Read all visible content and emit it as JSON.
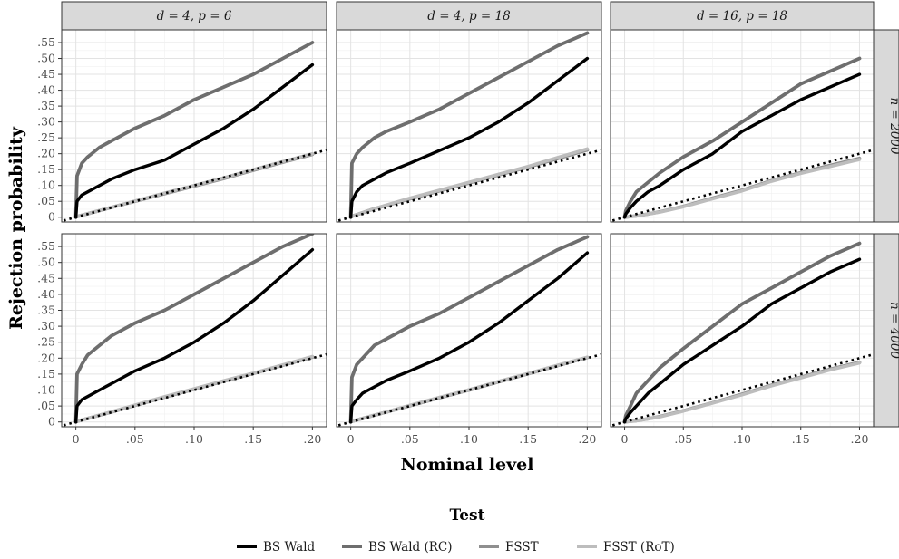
{
  "chart_data": {
    "type": "line",
    "facet_rows": [
      "n = 2000",
      "n = 4000"
    ],
    "facet_cols": [
      "d = 4, p = 6",
      "d = 4, p = 18",
      "d = 16, p = 18"
    ],
    "xlabel": "Nominal level",
    "ylabel": "Rejection probability",
    "xlim": [
      0,
      0.2
    ],
    "ylim": [
      0,
      0.59
    ],
    "x_ticks": [
      0,
      0.05,
      0.1,
      0.15,
      0.2
    ],
    "x_tick_labels": [
      "0",
      ".05",
      ".10",
      ".15",
      ".20"
    ],
    "y_ticks": [
      0,
      0.05,
      0.1,
      0.15,
      0.2,
      0.25,
      0.3,
      0.35,
      0.4,
      0.45,
      0.5,
      0.55
    ],
    "y_tick_labels": [
      "0",
      ".05",
      ".10",
      ".15",
      ".20",
      ".25",
      ".30",
      ".35",
      ".40",
      ".45",
      ".50",
      ".55"
    ],
    "grid": true,
    "reference_line": "45-degree dotted line",
    "legend": {
      "title": "Test",
      "position": "bottom",
      "entries": [
        {
          "name": "BS Wald",
          "color": "#000000"
        },
        {
          "name": "BS Wald (RC)",
          "color": "#6e6e6e"
        },
        {
          "name": "FSST",
          "color": "#8f8f8f"
        },
        {
          "name": "FSST (RoT)",
          "color": "#bdbdbd"
        }
      ]
    },
    "x": [
      0,
      0.001,
      0.005,
      0.01,
      0.02,
      0.03,
      0.05,
      0.075,
      0.1,
      0.125,
      0.15,
      0.175,
      0.2
    ],
    "panels": [
      {
        "row": "n = 2000",
        "col": "d = 4, p = 6",
        "series": [
          {
            "name": "BS Wald",
            "values": [
              0,
              0.05,
              0.07,
              0.08,
              0.1,
              0.12,
              0.15,
              0.18,
              0.23,
              0.28,
              0.34,
              0.41,
              0.48
            ]
          },
          {
            "name": "BS Wald (RC)",
            "values": [
              0,
              0.13,
              0.17,
              0.19,
              0.22,
              0.24,
              0.28,
              0.32,
              0.37,
              0.41,
              0.45,
              0.5,
              0.55
            ]
          },
          {
            "name": "FSST",
            "values": [
              0,
              0.002,
              0.006,
              0.011,
              0.021,
              0.031,
              0.05,
              0.074,
              0.098,
              0.122,
              0.148,
              0.173,
              0.198
            ]
          },
          {
            "name": "FSST (RoT)",
            "values": [
              0,
              0.002,
              0.006,
              0.011,
              0.021,
              0.031,
              0.051,
              0.076,
              0.1,
              0.124,
              0.15,
              0.175,
              0.2
            ]
          }
        ]
      },
      {
        "row": "n = 2000",
        "col": "d = 4, p = 18",
        "series": [
          {
            "name": "BS Wald",
            "values": [
              0,
              0.05,
              0.08,
              0.1,
              0.12,
              0.14,
              0.17,
              0.21,
              0.25,
              0.3,
              0.36,
              0.43,
              0.5
            ]
          },
          {
            "name": "BS Wald (RC)",
            "values": [
              0,
              0.17,
              0.2,
              0.22,
              0.25,
              0.27,
              0.3,
              0.34,
              0.39,
              0.44,
              0.49,
              0.54,
              0.58
            ]
          },
          {
            "name": "FSST",
            "values": [
              0,
              0.003,
              0.008,
              0.014,
              0.027,
              0.037,
              0.058,
              0.083,
              0.108,
              0.133,
              0.158,
              0.185,
              0.212
            ]
          },
          {
            "name": "FSST (RoT)",
            "values": [
              0,
              0.003,
              0.008,
              0.014,
              0.027,
              0.038,
              0.06,
              0.085,
              0.11,
              0.135,
              0.16,
              0.188,
              0.215
            ]
          }
        ]
      },
      {
        "row": "n = 2000",
        "col": "d = 16, p = 18",
        "series": [
          {
            "name": "BS Wald",
            "values": [
              0,
              0.01,
              0.03,
              0.05,
              0.08,
              0.1,
              0.15,
              0.2,
              0.27,
              0.32,
              0.37,
              0.41,
              0.45
            ]
          },
          {
            "name": "BS Wald (RC)",
            "values": [
              0,
              0.02,
              0.05,
              0.08,
              0.11,
              0.14,
              0.19,
              0.24,
              0.3,
              0.36,
              0.42,
              0.46,
              0.5
            ]
          },
          {
            "name": "FSST",
            "values": [
              0,
              0.0005,
              0.002,
              0.004,
              0.01,
              0.017,
              0.034,
              0.06,
              0.085,
              0.115,
              0.14,
              0.163,
              0.185
            ]
          },
          {
            "name": "FSST (RoT)",
            "values": [
              0,
              0.0005,
              0.002,
              0.004,
              0.01,
              0.016,
              0.033,
              0.058,
              0.083,
              0.113,
              0.138,
              0.16,
              0.182
            ]
          }
        ]
      },
      {
        "row": "n = 4000",
        "col": "d = 4, p = 6",
        "series": [
          {
            "name": "BS Wald",
            "values": [
              0,
              0.05,
              0.07,
              0.08,
              0.1,
              0.12,
              0.16,
              0.2,
              0.25,
              0.31,
              0.38,
              0.46,
              0.54
            ]
          },
          {
            "name": "BS Wald (RC)",
            "values": [
              0,
              0.15,
              0.18,
              0.21,
              0.24,
              0.27,
              0.31,
              0.35,
              0.4,
              0.45,
              0.5,
              0.55,
              0.59
            ]
          },
          {
            "name": "FSST",
            "values": [
              0,
              0.002,
              0.006,
              0.011,
              0.021,
              0.031,
              0.052,
              0.078,
              0.103,
              0.128,
              0.152,
              0.178,
              0.203
            ]
          },
          {
            "name": "FSST (RoT)",
            "values": [
              0,
              0.002,
              0.006,
              0.011,
              0.021,
              0.032,
              0.053,
              0.079,
              0.104,
              0.129,
              0.153,
              0.179,
              0.205
            ]
          }
        ]
      },
      {
        "row": "n = 4000",
        "col": "d = 4, p = 18",
        "series": [
          {
            "name": "BS Wald",
            "values": [
              0,
              0.05,
              0.07,
              0.09,
              0.11,
              0.13,
              0.16,
              0.2,
              0.25,
              0.31,
              0.38,
              0.45,
              0.53
            ]
          },
          {
            "name": "BS Wald (RC)",
            "values": [
              0,
              0.14,
              0.18,
              0.2,
              0.24,
              0.26,
              0.3,
              0.34,
              0.39,
              0.44,
              0.49,
              0.54,
              0.58
            ]
          },
          {
            "name": "FSST",
            "values": [
              0,
              0.002,
              0.006,
              0.011,
              0.021,
              0.031,
              0.051,
              0.076,
              0.1,
              0.126,
              0.151,
              0.177,
              0.202
            ]
          },
          {
            "name": "FSST (RoT)",
            "values": [
              0,
              0.002,
              0.006,
              0.011,
              0.021,
              0.031,
              0.052,
              0.077,
              0.101,
              0.127,
              0.152,
              0.178,
              0.203
            ]
          }
        ]
      },
      {
        "row": "n = 4000",
        "col": "d = 16, p = 18",
        "series": [
          {
            "name": "BS Wald",
            "values": [
              0,
              0.01,
              0.03,
              0.05,
              0.09,
              0.12,
              0.18,
              0.24,
              0.3,
              0.37,
              0.42,
              0.47,
              0.51
            ]
          },
          {
            "name": "BS Wald (RC)",
            "values": [
              0,
              0.02,
              0.05,
              0.09,
              0.13,
              0.17,
              0.23,
              0.3,
              0.37,
              0.42,
              0.47,
              0.52,
              0.56
            ]
          },
          {
            "name": "FSST",
            "values": [
              0,
              0.0005,
              0.002,
              0.004,
              0.01,
              0.017,
              0.035,
              0.06,
              0.087,
              0.115,
              0.14,
              0.165,
              0.187
            ]
          },
          {
            "name": "FSST (RoT)",
            "values": [
              0,
              0.0005,
              0.002,
              0.004,
              0.01,
              0.016,
              0.034,
              0.059,
              0.085,
              0.113,
              0.138,
              0.163,
              0.185
            ]
          }
        ]
      }
    ]
  }
}
